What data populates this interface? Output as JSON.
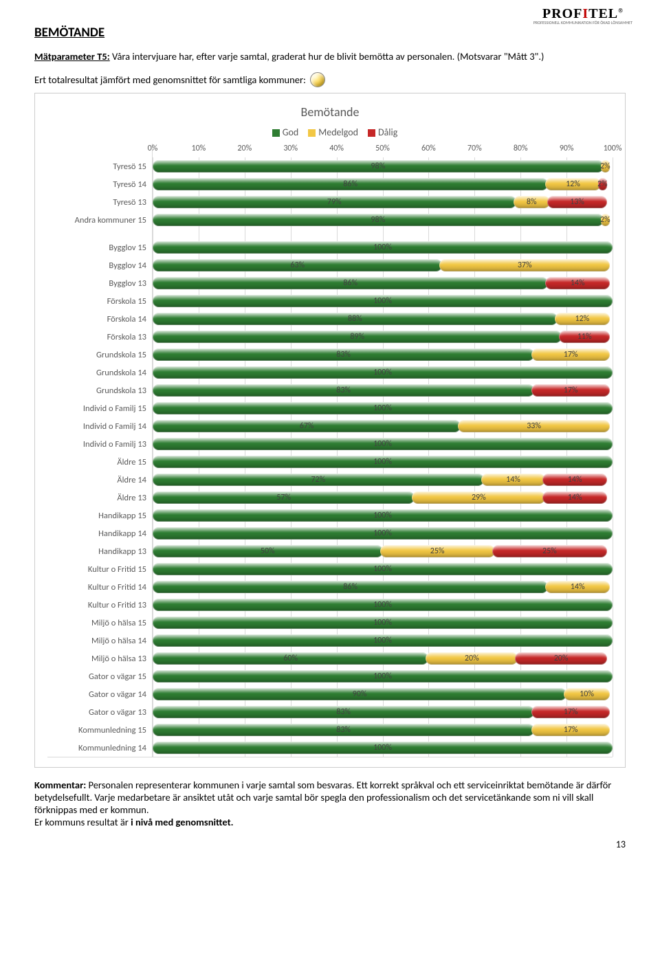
{
  "logo": {
    "brand_pre": "PROF",
    "brand_accent": "I",
    "brand_post": "TEL",
    "tagline": "PROFESSIONELL KOMMUNIKATION FÖR ÖKAD LÖNSAMHET"
  },
  "section_title": "BEMÖTANDE",
  "description": {
    "label": "Mätparameter T5:",
    "text": " Våra intervjuare har, efter varje samtal, graderat hur de blivit bemötta av personalen. (Motsvarar \"Mått 3\".)"
  },
  "result_line": "Ert totalresultat jämfört med genomsnittet för samtliga kommuner:",
  "bullet_color": "#ffd54a",
  "chart": {
    "title": "Bemötande",
    "legend": [
      {
        "label": "God",
        "color": "#2e7d32"
      },
      {
        "label": "Medelgod",
        "color": "#f2c744"
      },
      {
        "label": "Dålig",
        "color": "#c62828"
      }
    ],
    "colors": {
      "good": "#2e7d32",
      "mid": "#f2c744",
      "bad": "#c62828"
    },
    "xticks": [
      "0%",
      "10%",
      "20%",
      "30%",
      "40%",
      "50%",
      "60%",
      "70%",
      "80%",
      "90%",
      "100%"
    ],
    "grid_color": "#d9d9d9",
    "group1": [
      {
        "label": "Tyresö 15",
        "segs": [
          {
            "v": 98,
            "c": "good"
          },
          {
            "v": 2,
            "c": "mid"
          }
        ]
      },
      {
        "label": "Tyresö 14",
        "segs": [
          {
            "v": 86,
            "c": "good"
          },
          {
            "v": 12,
            "c": "mid"
          },
          {
            "v": 2,
            "c": "bad"
          }
        ]
      },
      {
        "label": "Tyresö 13",
        "segs": [
          {
            "v": 79,
            "c": "good"
          },
          {
            "v": 8,
            "c": "mid"
          },
          {
            "v": 13,
            "c": "bad"
          }
        ]
      },
      {
        "label": "Andra kommuner 15",
        "segs": [
          {
            "v": 98,
            "c": "good"
          },
          {
            "v": 2,
            "c": "mid"
          }
        ]
      }
    ],
    "group2": [
      {
        "label": "Bygglov 15",
        "segs": [
          {
            "v": 100,
            "c": "good"
          }
        ]
      },
      {
        "label": "Bygglov 14",
        "segs": [
          {
            "v": 63,
            "c": "good"
          },
          {
            "v": 37,
            "c": "mid"
          }
        ]
      },
      {
        "label": "Bygglov 13",
        "segs": [
          {
            "v": 86,
            "c": "good"
          },
          {
            "v": 14,
            "c": "bad"
          }
        ]
      },
      {
        "label": "Förskola 15",
        "segs": [
          {
            "v": 100,
            "c": "good"
          }
        ]
      },
      {
        "label": "Förskola 14",
        "segs": [
          {
            "v": 88,
            "c": "good"
          },
          {
            "v": 12,
            "c": "mid"
          }
        ]
      },
      {
        "label": "Förskola 13",
        "segs": [
          {
            "v": 89,
            "c": "good"
          },
          {
            "v": 11,
            "c": "bad"
          }
        ]
      },
      {
        "label": "Grundskola 15",
        "segs": [
          {
            "v": 83,
            "c": "good"
          },
          {
            "v": 17,
            "c": "mid"
          }
        ]
      },
      {
        "label": "Grundskola 14",
        "segs": [
          {
            "v": 100,
            "c": "good"
          }
        ]
      },
      {
        "label": "Grundskola 13",
        "segs": [
          {
            "v": 83,
            "c": "good"
          },
          {
            "v": 17,
            "c": "bad"
          }
        ]
      },
      {
        "label": "Individ o Familj 15",
        "segs": [
          {
            "v": 100,
            "c": "good"
          }
        ]
      },
      {
        "label": "Individ o Familj 14",
        "segs": [
          {
            "v": 67,
            "c": "good"
          },
          {
            "v": 33,
            "c": "mid"
          }
        ]
      },
      {
        "label": "Individ o Familj 13",
        "segs": [
          {
            "v": 100,
            "c": "good"
          }
        ]
      },
      {
        "label": "Äldre 15",
        "segs": [
          {
            "v": 100,
            "c": "good"
          }
        ]
      },
      {
        "label": "Äldre 14",
        "segs": [
          {
            "v": 72,
            "c": "good"
          },
          {
            "v": 14,
            "c": "mid"
          },
          {
            "v": 14,
            "c": "bad"
          }
        ]
      },
      {
        "label": "Äldre 13",
        "segs": [
          {
            "v": 57,
            "c": "good"
          },
          {
            "v": 29,
            "c": "mid"
          },
          {
            "v": 14,
            "c": "bad"
          }
        ]
      },
      {
        "label": "Handikapp 15",
        "segs": [
          {
            "v": 100,
            "c": "good"
          }
        ]
      },
      {
        "label": "Handikapp 14",
        "segs": [
          {
            "v": 100,
            "c": "good"
          }
        ]
      },
      {
        "label": "Handikapp 13",
        "segs": [
          {
            "v": 50,
            "c": "good"
          },
          {
            "v": 25,
            "c": "mid"
          },
          {
            "v": 25,
            "c": "bad"
          }
        ]
      },
      {
        "label": "Kultur o Fritid 15",
        "segs": [
          {
            "v": 100,
            "c": "good"
          }
        ]
      },
      {
        "label": "Kultur o Fritid 14",
        "segs": [
          {
            "v": 86,
            "c": "good"
          },
          {
            "v": 14,
            "c": "mid"
          }
        ]
      },
      {
        "label": "Kultur o Fritid 13",
        "segs": [
          {
            "v": 100,
            "c": "good"
          }
        ]
      },
      {
        "label": "Miljö o hälsa 15",
        "segs": [
          {
            "v": 100,
            "c": "good"
          }
        ]
      },
      {
        "label": "Miljö o hälsa 14",
        "segs": [
          {
            "v": 100,
            "c": "good"
          }
        ]
      },
      {
        "label": "Miljö o hälsa 13",
        "segs": [
          {
            "v": 60,
            "c": "good"
          },
          {
            "v": 20,
            "c": "mid"
          },
          {
            "v": 20,
            "c": "bad"
          }
        ]
      },
      {
        "label": "Gator o vägar 15",
        "segs": [
          {
            "v": 100,
            "c": "good"
          }
        ]
      },
      {
        "label": "Gator o vägar 14",
        "segs": [
          {
            "v": 90,
            "c": "good"
          },
          {
            "v": 10,
            "c": "mid"
          }
        ]
      },
      {
        "label": "Gator o vägar 13",
        "segs": [
          {
            "v": 83,
            "c": "good"
          },
          {
            "v": 17,
            "c": "bad"
          }
        ]
      },
      {
        "label": "Kommunledning 15",
        "segs": [
          {
            "v": 83,
            "c": "good"
          },
          {
            "v": 17,
            "c": "mid"
          }
        ]
      },
      {
        "label": "Kommunledning 14",
        "segs": [
          {
            "v": 100,
            "c": "good"
          }
        ]
      }
    ]
  },
  "comment": {
    "label": "Kommentar:",
    "text": " Personalen representerar kommunen i varje samtal som besvaras. Ett korrekt språkval och ett serviceinriktat bemötande är därför betydelsefullt. Varje medarbetare är ansiktet utåt och varje samtal bör spegla den professionalism och det servicetänkande som ni vill skall förknippas med er kommun.",
    "tail_pre": "Er kommuns resultat är ",
    "tail_bold": "i nivå med genomsnittet."
  },
  "page_number": "13"
}
